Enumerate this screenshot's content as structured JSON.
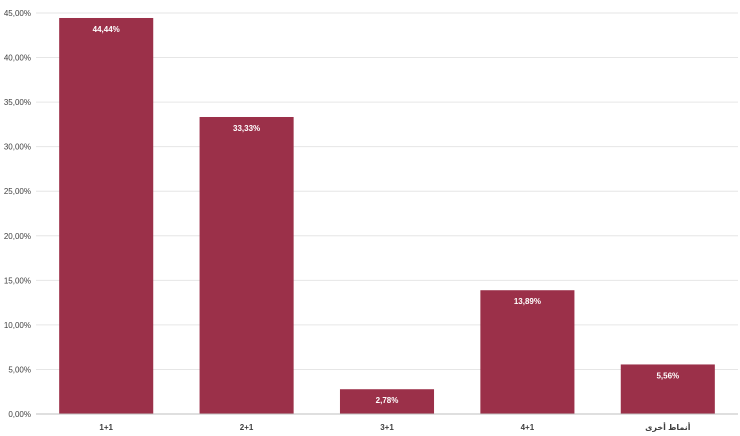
{
  "chart_data": {
    "type": "bar",
    "title": "",
    "xlabel": "",
    "ylabel": "",
    "categories": [
      "1+1",
      "2+1",
      "3+1",
      "4+1",
      "أنماط أخرى"
    ],
    "values": [
      44.44,
      33.33,
      2.78,
      13.89,
      5.56
    ],
    "data_labels": [
      "44,44%",
      "33,33%",
      "2,78%",
      "13,89%",
      "5,56%"
    ],
    "ylim": [
      0,
      45
    ],
    "y_ticks": [
      0,
      5,
      10,
      15,
      20,
      25,
      30,
      35,
      40,
      45
    ],
    "y_tick_labels": [
      "0,00%",
      "5,00%",
      "10,00%",
      "15,00%",
      "20,00%",
      "25,00%",
      "30,00%",
      "35,00%",
      "40,00%",
      "45,00%"
    ],
    "grid": true,
    "legend": "none",
    "colors": {
      "bar": "#9b3049",
      "grid": "#e6e6e6",
      "axis": "#bfbfbf",
      "tick_text": "#404040",
      "data_label_text": "#ffffff"
    }
  }
}
